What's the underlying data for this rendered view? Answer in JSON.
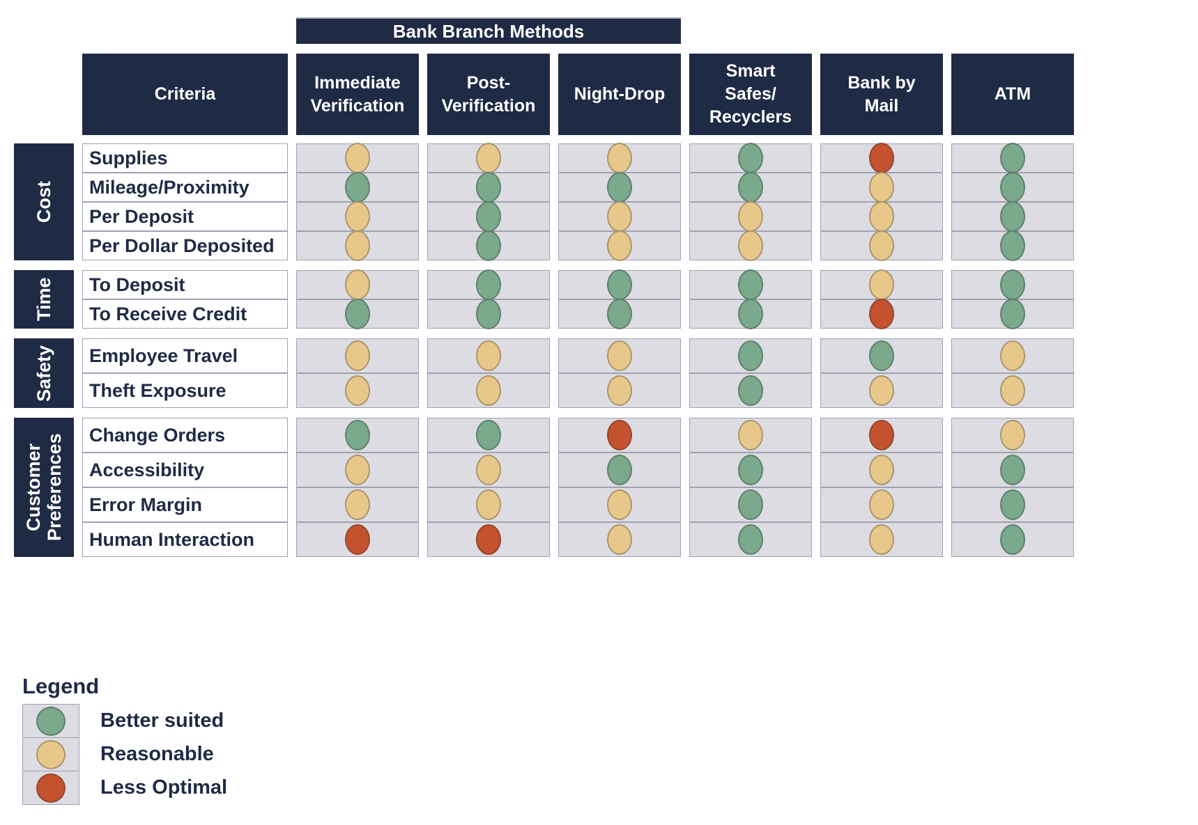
{
  "chart_data": {
    "type": "table",
    "column_group_header": {
      "label": "Bank Branch Methods",
      "spans": [
        "Immediate Verification",
        "Post-Verification",
        "Night-Drop"
      ]
    },
    "criteria_header": "Criteria",
    "columns": [
      "Immediate Verification",
      "Post-Verification",
      "Night-Drop",
      "Smart Safes/Recyclers",
      "Bank by Mail",
      "ATM"
    ],
    "column_display": [
      "Immediate\nVerification",
      "Post-\nVerification",
      "Night-Drop",
      "Smart\nSafes/\nRecyclers",
      "Bank by\nMail",
      "ATM"
    ],
    "rating_scale": {
      "better": "Better suited",
      "reasonable": "Reasonable",
      "less": "Less Optimal"
    },
    "groups": [
      {
        "label": "Cost",
        "rows": [
          {
            "criterion": "Supplies",
            "ratings": [
              "reasonable",
              "reasonable",
              "reasonable",
              "better",
              "less",
              "better"
            ]
          },
          {
            "criterion": "Mileage/Proximity",
            "ratings": [
              "better",
              "better",
              "better",
              "better",
              "reasonable",
              "better"
            ]
          },
          {
            "criterion": "Per Deposit",
            "ratings": [
              "reasonable",
              "better",
              "reasonable",
              "reasonable",
              "reasonable",
              "better"
            ]
          },
          {
            "criterion": "Per Dollar Deposited",
            "ratings": [
              "reasonable",
              "better",
              "reasonable",
              "reasonable",
              "reasonable",
              "better"
            ]
          }
        ]
      },
      {
        "label": "Time",
        "rows": [
          {
            "criterion": "To Deposit",
            "ratings": [
              "reasonable",
              "better",
              "better",
              "better",
              "reasonable",
              "better"
            ]
          },
          {
            "criterion": "To Receive Credit",
            "ratings": [
              "better",
              "better",
              "better",
              "better",
              "less",
              "better"
            ]
          }
        ]
      },
      {
        "label": "Safety",
        "rows": [
          {
            "criterion": "Employee Travel",
            "ratings": [
              "reasonable",
              "reasonable",
              "reasonable",
              "better",
              "better",
              "reasonable"
            ]
          },
          {
            "criterion": "Theft Exposure",
            "ratings": [
              "reasonable",
              "reasonable",
              "reasonable",
              "better",
              "reasonable",
              "reasonable"
            ]
          }
        ]
      },
      {
        "label": "Customer\nPreferences",
        "rows": [
          {
            "criterion": "Change Orders",
            "ratings": [
              "better",
              "better",
              "less",
              "reasonable",
              "less",
              "reasonable"
            ]
          },
          {
            "criterion": "Accessibility",
            "ratings": [
              "reasonable",
              "reasonable",
              "better",
              "better",
              "reasonable",
              "better"
            ]
          },
          {
            "criterion": "Error Margin",
            "ratings": [
              "reasonable",
              "reasonable",
              "reasonable",
              "better",
              "reasonable",
              "better"
            ]
          },
          {
            "criterion": "Human Interaction",
            "ratings": [
              "less",
              "less",
              "reasonable",
              "better",
              "reasonable",
              "better"
            ]
          }
        ]
      }
    ]
  },
  "legend": {
    "title": "Legend",
    "items": [
      {
        "level": "better",
        "label": "Better suited",
        "color": "#7aa98c"
      },
      {
        "level": "reasonable",
        "label": "Reasonable",
        "color": "#e8c88a"
      },
      {
        "level": "less",
        "label": "Less Optimal",
        "color": "#c5522f"
      }
    ]
  },
  "colors": {
    "navy": "#1f2a45",
    "text": "#1f2a45",
    "page-bg": "#ffffff",
    "cell-bg": "#dcdce2",
    "cell-border": "#a0a1b1",
    "better": "#7aa98c",
    "reasonable": "#e8c88a",
    "less": "#c5522f"
  }
}
